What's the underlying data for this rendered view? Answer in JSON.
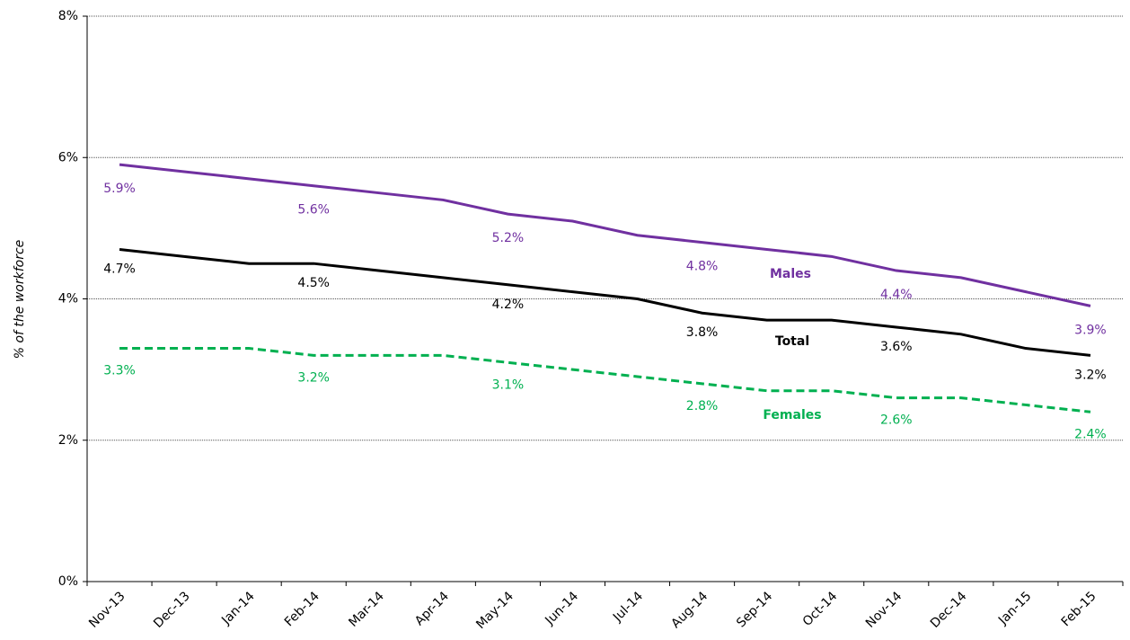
{
  "chart_data": {
    "type": "line",
    "y_label": "% of the workforce",
    "categories": [
      "Nov-13",
      "Dec-13",
      "Jan-14",
      "Feb-14",
      "Mar-14",
      "Apr-14",
      "May-14",
      "Jun-14",
      "Jul-14",
      "Aug-14",
      "Sep-14",
      "Oct-14",
      "Nov-14",
      "Dec-14",
      "Jan-15",
      "Feb-15"
    ],
    "series": [
      {
        "name": "Males",
        "color": "#7030a0",
        "style": "solid",
        "values": [
          5.9,
          5.8,
          5.7,
          5.6,
          5.5,
          5.4,
          5.2,
          5.1,
          4.9,
          4.8,
          4.7,
          4.6,
          4.4,
          4.3,
          4.1,
          3.9
        ],
        "value_labels": [
          "5.9%",
          null,
          null,
          "5.6%",
          null,
          null,
          "5.2%",
          null,
          null,
          "4.8%",
          null,
          null,
          "4.4%",
          null,
          null,
          "3.9%"
        ]
      },
      {
        "name": "Total",
        "color": "#000000",
        "style": "solid",
        "values": [
          4.7,
          4.6,
          4.5,
          4.5,
          4.4,
          4.3,
          4.2,
          4.1,
          4.0,
          3.8,
          3.7,
          3.7,
          3.6,
          3.5,
          3.3,
          3.2
        ],
        "value_labels": [
          "4.7%",
          null,
          null,
          "4.5%",
          null,
          null,
          "4.2%",
          null,
          null,
          "3.8%",
          null,
          null,
          "3.6%",
          null,
          null,
          "3.2%"
        ]
      },
      {
        "name": "Females",
        "color": "#00b050",
        "style": "dashed",
        "values": [
          3.3,
          3.3,
          3.3,
          3.2,
          3.2,
          3.2,
          3.1,
          3.0,
          2.9,
          2.8,
          2.7,
          2.7,
          2.6,
          2.6,
          2.5,
          2.4
        ],
        "value_labels": [
          "3.3%",
          null,
          null,
          "3.2%",
          null,
          null,
          "3.1%",
          null,
          null,
          "2.8%",
          null,
          null,
          "2.6%",
          null,
          null,
          "2.4%"
        ]
      }
    ],
    "ylim": [
      0,
      8
    ],
    "yticks": [
      {
        "value": 0,
        "label": "0%"
      },
      {
        "value": 2,
        "label": "2%"
      },
      {
        "value": 4,
        "label": "4%"
      },
      {
        "value": 6,
        "label": "6%"
      },
      {
        "value": 8,
        "label": "8%"
      }
    ],
    "grid": true
  }
}
